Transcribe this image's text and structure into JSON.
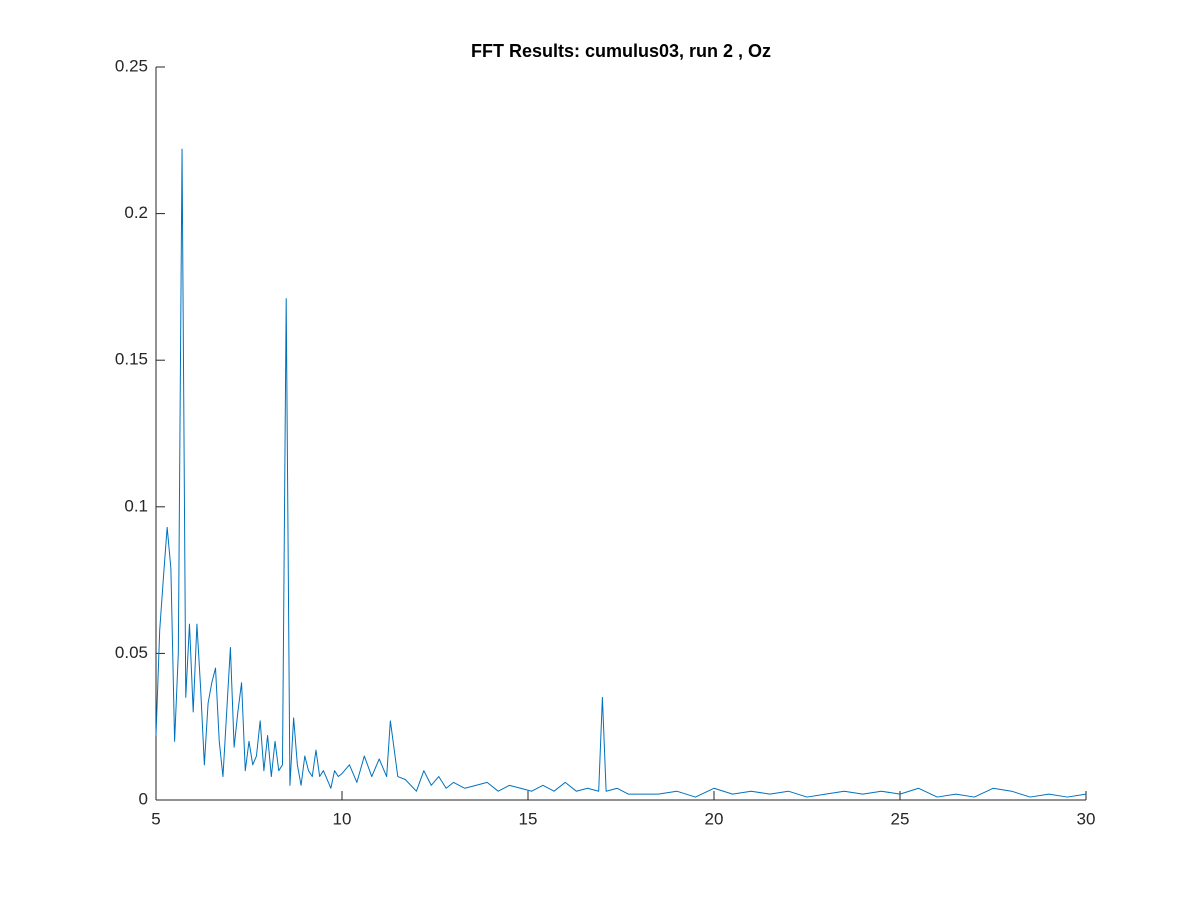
{
  "chart_data": {
    "type": "line",
    "title": "FFT Results: cumulus03, run 2 , Oz",
    "x": [
      5.0,
      5.1,
      5.2,
      5.3,
      5.4,
      5.5,
      5.6,
      5.7,
      5.8,
      5.9,
      6.0,
      6.1,
      6.2,
      6.3,
      6.4,
      6.5,
      6.6,
      6.7,
      6.8,
      6.9,
      7.0,
      7.1,
      7.2,
      7.3,
      7.4,
      7.5,
      7.6,
      7.7,
      7.8,
      7.9,
      8.0,
      8.1,
      8.2,
      8.3,
      8.4,
      8.5,
      8.6,
      8.7,
      8.8,
      8.9,
      9.0,
      9.1,
      9.2,
      9.3,
      9.4,
      9.5,
      9.6,
      9.7,
      9.8,
      9.9,
      10.0,
      10.2,
      10.4,
      10.6,
      10.8,
      11.0,
      11.2,
      11.3,
      11.5,
      11.7,
      12.0,
      12.2,
      12.4,
      12.6,
      12.8,
      13.0,
      13.3,
      13.6,
      13.9,
      14.2,
      14.5,
      14.8,
      15.1,
      15.4,
      15.7,
      16.0,
      16.3,
      16.6,
      16.9,
      17.0,
      17.1,
      17.4,
      17.7,
      18.0,
      18.5,
      19.0,
      19.5,
      20.0,
      20.5,
      21.0,
      21.5,
      22.0,
      22.5,
      23.0,
      23.5,
      24.0,
      24.5,
      25.0,
      25.5,
      26.0,
      26.5,
      27.0,
      27.5,
      28.0,
      28.5,
      29.0,
      29.5,
      30.0
    ],
    "series": [
      {
        "color": "#0072bd",
        "values": [
          0.022,
          0.058,
          0.076,
          0.093,
          0.079,
          0.02,
          0.05,
          0.222,
          0.035,
          0.06,
          0.03,
          0.06,
          0.038,
          0.012,
          0.033,
          0.04,
          0.045,
          0.02,
          0.008,
          0.03,
          0.052,
          0.018,
          0.03,
          0.04,
          0.01,
          0.02,
          0.012,
          0.015,
          0.027,
          0.01,
          0.022,
          0.008,
          0.02,
          0.01,
          0.012,
          0.171,
          0.005,
          0.028,
          0.012,
          0.005,
          0.015,
          0.01,
          0.008,
          0.017,
          0.008,
          0.01,
          0.007,
          0.004,
          0.01,
          0.008,
          0.009,
          0.012,
          0.006,
          0.015,
          0.008,
          0.014,
          0.008,
          0.027,
          0.008,
          0.007,
          0.003,
          0.01,
          0.005,
          0.008,
          0.004,
          0.006,
          0.004,
          0.005,
          0.006,
          0.003,
          0.005,
          0.004,
          0.003,
          0.005,
          0.003,
          0.006,
          0.003,
          0.004,
          0.003,
          0.035,
          0.003,
          0.004,
          0.002,
          0.002,
          0.002,
          0.003,
          0.001,
          0.004,
          0.002,
          0.003,
          0.002,
          0.003,
          0.001,
          0.002,
          0.003,
          0.002,
          0.003,
          0.002,
          0.004,
          0.001,
          0.002,
          0.001,
          0.004,
          0.003,
          0.001,
          0.002,
          0.001,
          0.002
        ]
      }
    ],
    "xlim": [
      5,
      30
    ],
    "ylim": [
      0,
      0.25
    ],
    "xticks": [
      5,
      10,
      15,
      20,
      25,
      30
    ],
    "yticks": [
      0,
      0.05,
      0.1,
      0.15,
      0.2,
      0.25
    ]
  }
}
